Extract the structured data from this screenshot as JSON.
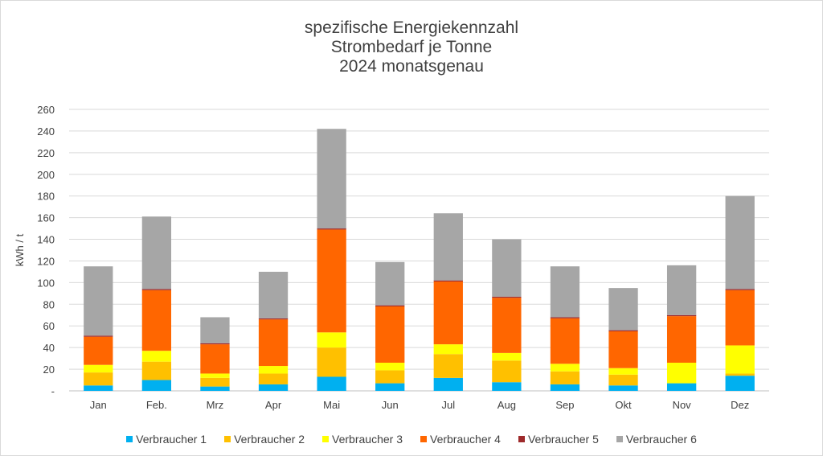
{
  "chart_data": {
    "type": "bar",
    "stacked": true,
    "title": [
      "spezifische Energiekennzahl",
      "Strombedarf je Tonne",
      "2024 monatsgenau"
    ],
    "xlabel": "",
    "ylabel": "kWh / t",
    "ylim": [
      0,
      260
    ],
    "y_ticks": [
      0,
      20,
      40,
      60,
      80,
      100,
      120,
      140,
      160,
      180,
      200,
      220,
      240,
      260
    ],
    "y_tick_labels": [
      "-",
      "20",
      "40",
      "60",
      "80",
      "100",
      "120",
      "140",
      "160",
      "180",
      "200",
      "220",
      "240",
      "260"
    ],
    "grid": true,
    "legend_position": "bottom",
    "categories": [
      "Jan",
      "Feb.",
      "Mrz",
      "Apr",
      "Mai",
      "Jun",
      "Jul",
      "Aug",
      "Sep",
      "Okt",
      "Nov",
      "Dez"
    ],
    "series": [
      {
        "name": "Verbraucher 1",
        "color": "#00b0f0",
        "values": [
          5,
          10,
          4,
          6,
          13,
          7,
          12,
          8,
          6,
          5,
          7,
          14
        ]
      },
      {
        "name": "Verbraucher 2",
        "color": "#ffc000",
        "values": [
          12,
          17,
          8,
          10,
          27,
          12,
          22,
          20,
          12,
          10,
          0,
          2
        ]
      },
      {
        "name": "Verbraucher 3",
        "color": "#ffff00",
        "values": [
          7,
          10,
          4,
          7,
          14,
          7,
          9,
          7,
          7,
          6,
          19,
          26
        ]
      },
      {
        "name": "Verbraucher 4",
        "color": "#ff6600",
        "values": [
          26,
          56,
          27,
          43,
          95,
          52,
          58,
          51,
          42,
          34,
          43,
          51
        ]
      },
      {
        "name": "Verbraucher 5",
        "color": "#9e2a2b",
        "values": [
          1,
          1,
          1,
          1,
          1,
          1,
          1,
          1,
          1,
          1,
          1,
          1
        ]
      },
      {
        "name": "Verbraucher 6",
        "color": "#a6a6a6",
        "values": [
          64,
          67,
          24,
          43,
          92,
          40,
          62,
          53,
          47,
          39,
          46,
          86
        ]
      }
    ]
  }
}
